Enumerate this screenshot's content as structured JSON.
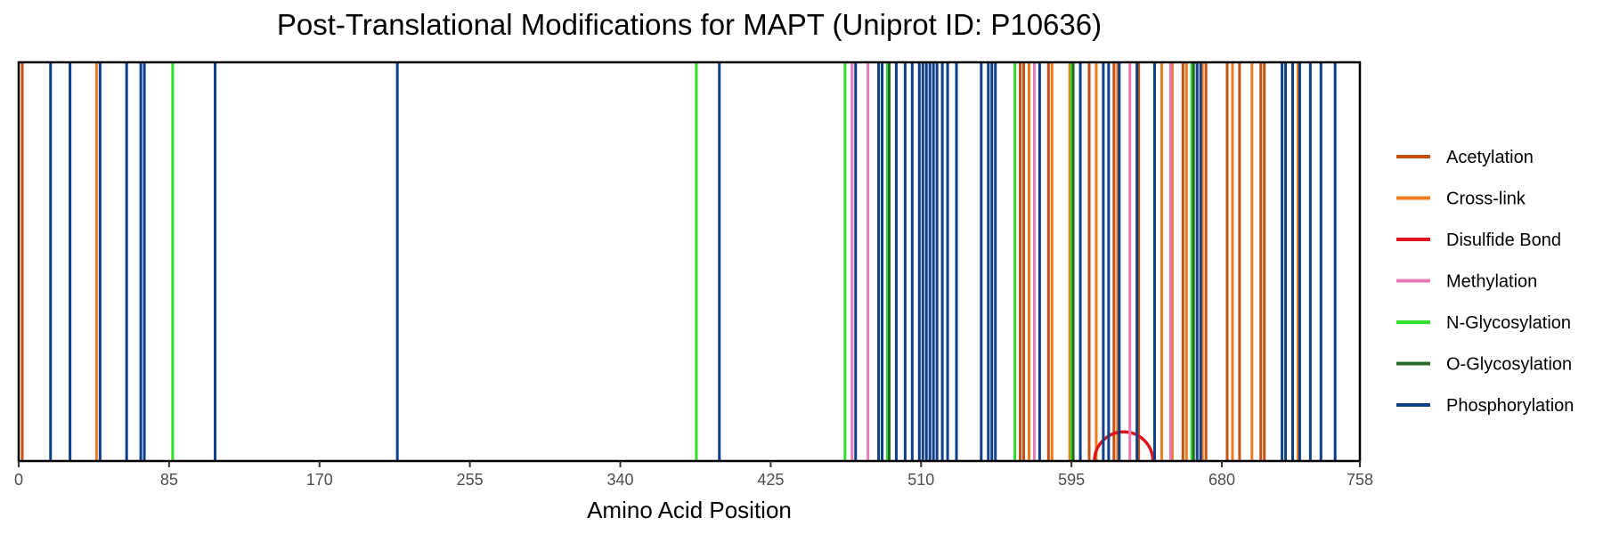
{
  "chart_data": {
    "type": "line",
    "title": "Post-Translational Modifications for MAPT (Uniprot ID: P10636)",
    "xlabel": "Amino Acid Position",
    "ylabel": "",
    "xlim": [
      0,
      758
    ],
    "xticks": [
      0,
      85,
      170,
      255,
      340,
      425,
      510,
      595,
      680,
      758
    ],
    "grid": false,
    "legend_position": "right",
    "legend": [
      "Acetylation",
      "Cross-link",
      "Disulfide Bond",
      "Methylation",
      "N-Glycosylation",
      "O-Glycosylation",
      "Phosphorylation"
    ],
    "colors": {
      "Acetylation": "#c6500f",
      "Cross-link": "#f07b1d",
      "Disulfide Bond": "#e0141a",
      "Methylation": "#e878b7",
      "N-Glycosylation": "#2ee02a",
      "O-Glycosylation": "#2a6a27",
      "Phosphorylation": "#0d3f8a"
    },
    "series": [
      {
        "name": "Acetylation",
        "positions": [
          2,
          566,
          568,
          582,
          605,
          619,
          633,
          658,
          671,
          683,
          690,
          702,
          704
        ]
      },
      {
        "name": "Cross-link",
        "positions": [
          44,
          571,
          584,
          594,
          609,
          621,
          646,
          652,
          660,
          669,
          686,
          697,
          723
        ]
      },
      {
        "name": "Disulfide Bond",
        "links": [
          [
            608,
            641
          ]
        ]
      },
      {
        "name": "Methylation",
        "positions": [
          471,
          480,
          574,
          628,
          651
        ]
      },
      {
        "name": "N-Glycosylation",
        "positions": [
          87,
          383,
          467,
          491,
          563,
          595,
          663
        ]
      },
      {
        "name": "O-Glycosylation",
        "positions": [
          492,
          596,
          664
        ]
      },
      {
        "name": "Phosphorylation",
        "positions": [
          18,
          29,
          46,
          61,
          69,
          71,
          111,
          214,
          396,
          473,
          486,
          488,
          496,
          501,
          505,
          509,
          511,
          513,
          515,
          517,
          519,
          522,
          525,
          530,
          544,
          548,
          550,
          552,
          577,
          600,
          613,
          616,
          622,
          632,
          642,
          666,
          668,
          714,
          716,
          720,
          724,
          730,
          736,
          744
        ]
      }
    ]
  }
}
